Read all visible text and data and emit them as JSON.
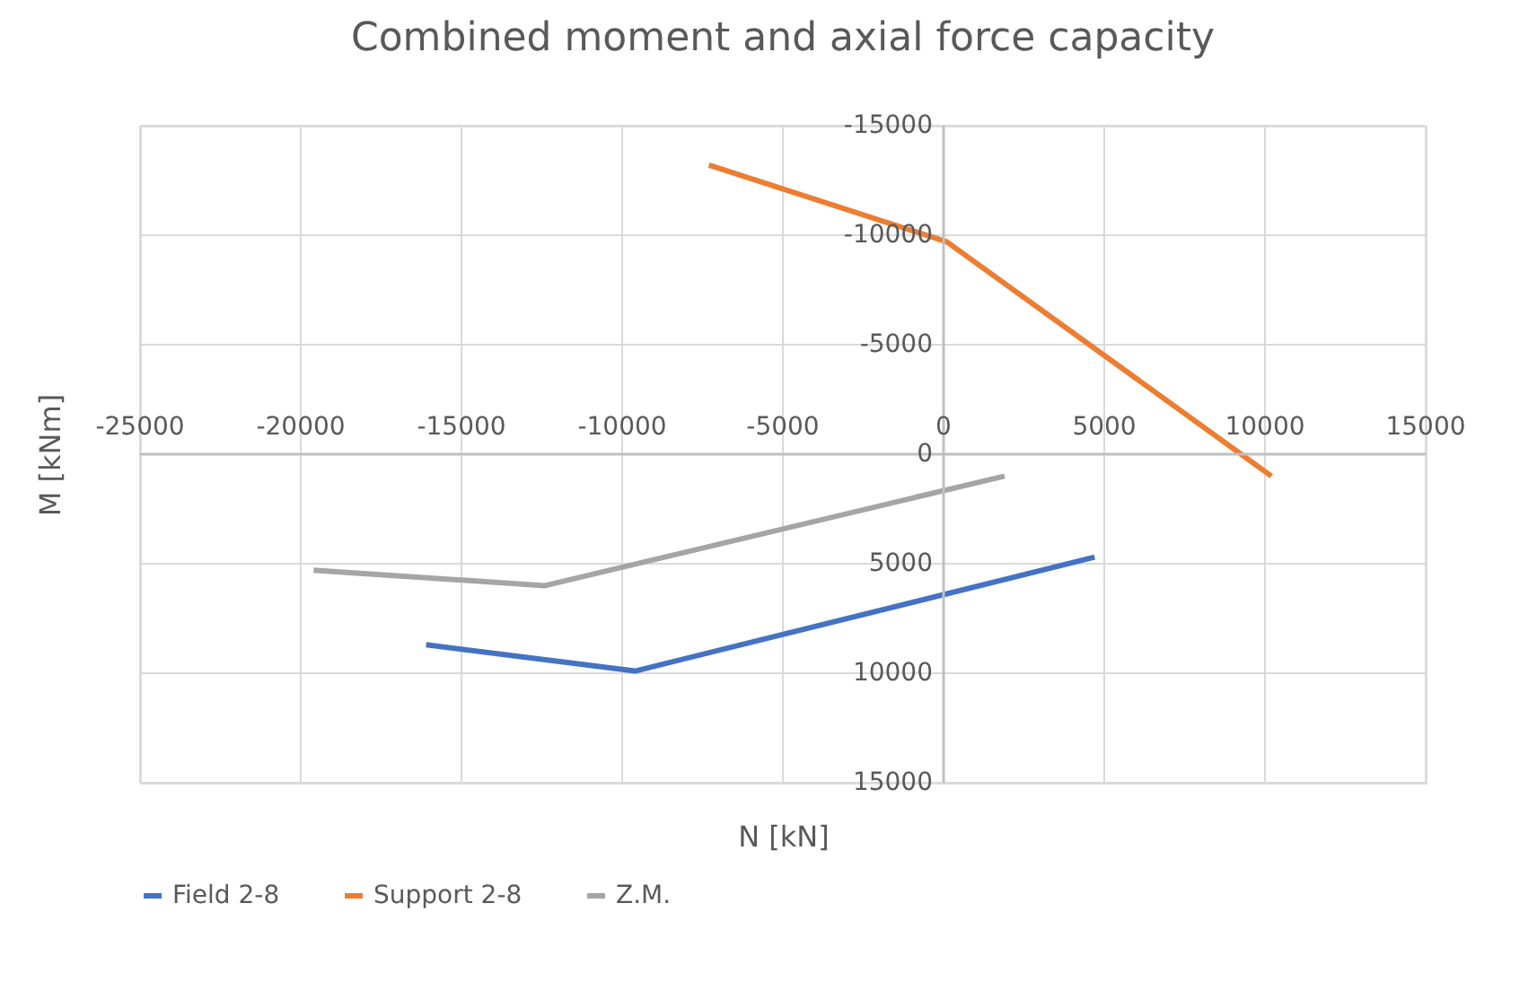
{
  "chart_data": {
    "type": "line",
    "title": "Combined moment and axial force capacity",
    "xlabel": "N [kN]",
    "ylabel": "M [kNm]",
    "xlim": [
      -25000,
      15000
    ],
    "xticks": [
      -25000,
      -20000,
      -15000,
      -10000,
      -5000,
      0,
      5000,
      10000,
      15000
    ],
    "ylim": [
      15000,
      -15000
    ],
    "yticks": [
      -15000,
      -10000,
      -5000,
      0,
      5000,
      10000,
      15000
    ],
    "grid": true,
    "legend": "bottom",
    "series": [
      {
        "name": "Field 2-8",
        "color": "#4472c4",
        "x": [
          -16100,
          -9600,
          4700
        ],
        "values": [
          8700,
          9900,
          4700
        ]
      },
      {
        "name": "Support 2-8",
        "color": "#ed7d31",
        "x": [
          -7300,
          100,
          10200
        ],
        "values": [
          -13200,
          -9700,
          1000
        ]
      },
      {
        "name": "Z.M.",
        "color": "#a5a5a5",
        "x": [
          -19600,
          -12400,
          1900
        ],
        "values": [
          5300,
          6000,
          1000
        ]
      }
    ]
  }
}
